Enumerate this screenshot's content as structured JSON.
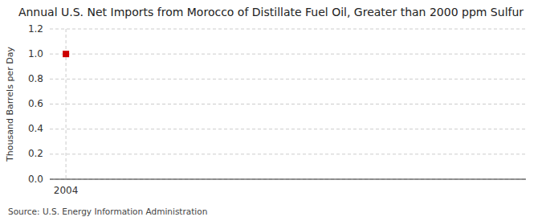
{
  "chart_data": {
    "type": "scatter",
    "title": "Annual U.S. Net Imports from Morocco of Distillate Fuel Oil, Greater than 2000 ppm Sulfur",
    "ylabel": "Thousand Barrels per Day",
    "annotations": [
      "Source: U.S. Energy Information Administration"
    ],
    "x": [
      2004
    ],
    "values": [
      1.0
    ],
    "color": "#cc0000",
    "marker": "square",
    "xlim": [
      2003.6,
      2015.4
    ],
    "xticks": [
      2004
    ],
    "ylim": [
      0.0,
      1.2
    ],
    "yticks": [
      {
        "value": 0.0,
        "label": "0.0"
      },
      0.2,
      0.4,
      0.6,
      0.8,
      {
        "value": 1.0,
        "label": "1.0"
      },
      1.2
    ],
    "grid": true
  }
}
